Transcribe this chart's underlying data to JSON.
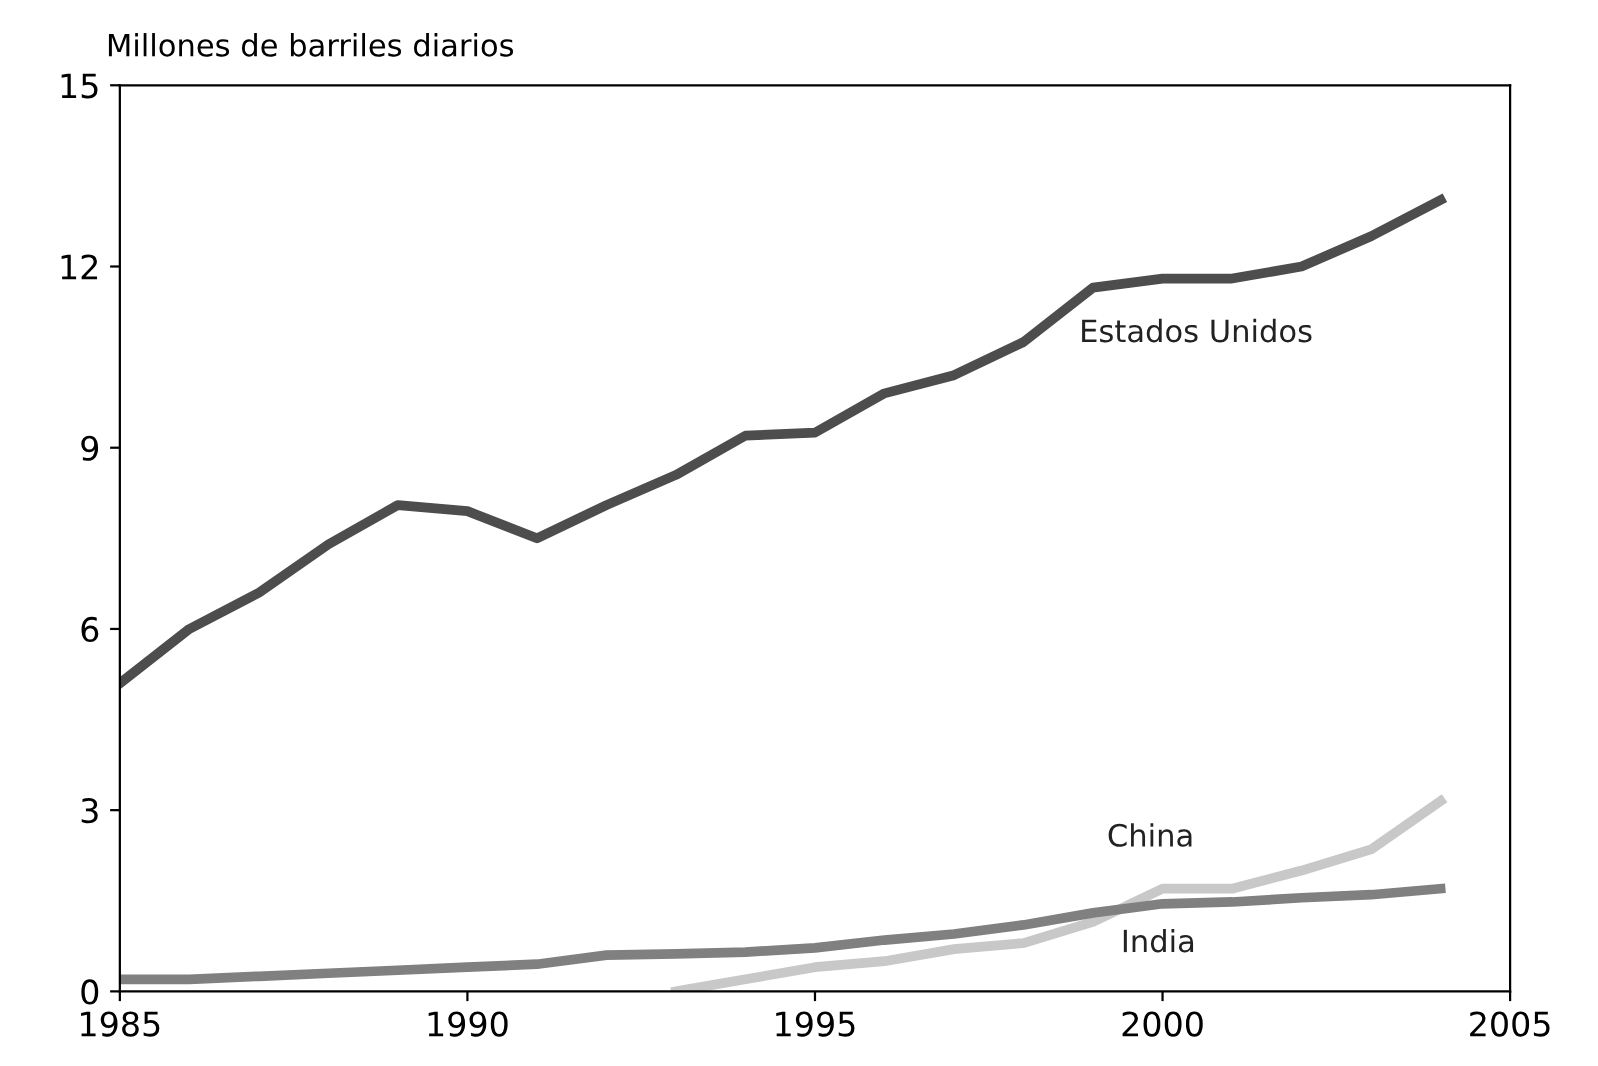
{
  "chart_data": {
    "type": "line",
    "ylabel": "Millones de barriles diarios",
    "xlim": [
      1985,
      2005
    ],
    "xticks": [
      1985,
      1990,
      1995,
      2000,
      2005
    ],
    "ylim": [
      0,
      15
    ],
    "yticks": [
      0,
      3,
      6,
      9,
      12,
      15
    ],
    "grid": false,
    "legend": false,
    "marker": "none",
    "line_style": "solid",
    "series": [
      {
        "name": "Estados Unidos",
        "color": "#4d4d4d",
        "x": [
          1985,
          1986,
          1987,
          1988,
          1989,
          1990,
          1991,
          1992,
          1993,
          1994,
          1995,
          1996,
          1997,
          1998,
          1999,
          2000,
          2001,
          2002,
          2003,
          2004
        ],
        "values": [
          5.1,
          6.0,
          6.6,
          7.4,
          8.05,
          7.95,
          7.5,
          8.05,
          8.55,
          9.2,
          9.25,
          9.9,
          10.2,
          10.75,
          11.65,
          11.8,
          11.8,
          12.0,
          12.5,
          13.1
        ]
      },
      {
        "name": "China",
        "color": "#c8c8c8",
        "x": [
          1993,
          1994,
          1995,
          1996,
          1997,
          1998,
          1999,
          2000,
          2001,
          2002,
          2003,
          2004
        ],
        "values": [
          0,
          0.2,
          0.4,
          0.5,
          0.7,
          0.8,
          1.15,
          1.7,
          1.7,
          2.0,
          2.35,
          3.15
        ]
      },
      {
        "name": "India",
        "color": "#808080",
        "x": [
          1985,
          1986,
          1987,
          1988,
          1989,
          1990,
          1991,
          1992,
          1993,
          1994,
          1995,
          1996,
          1997,
          1998,
          1999,
          2000,
          2001,
          2002,
          2003,
          2004
        ],
        "values": [
          0.2,
          0.2,
          0.25,
          0.3,
          0.35,
          0.4,
          0.45,
          0.6,
          0.62,
          0.65,
          0.72,
          0.85,
          0.95,
          1.1,
          1.3,
          1.45,
          1.48,
          1.55,
          1.6,
          1.7
        ]
      }
    ]
  }
}
